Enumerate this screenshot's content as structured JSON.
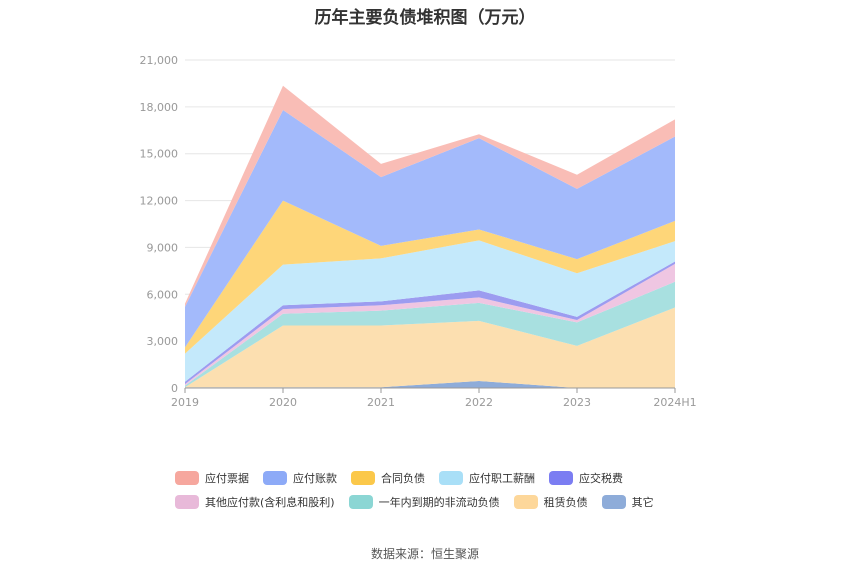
{
  "title": "历年主要负债堆积图（万元）",
  "source": "数据来源：恒生聚源",
  "chart_data": {
    "type": "area",
    "stacked": true,
    "categories": [
      "2019",
      "2020",
      "2021",
      "2022",
      "2023",
      "2024H1"
    ],
    "ylim": [
      0,
      21000
    ],
    "yticks": [
      "0",
      "3,000",
      "6,000",
      "9,000",
      "12,000",
      "15,000",
      "18,000",
      "21,000"
    ],
    "grid": true,
    "legend_position": "bottom",
    "series": [
      {
        "name": "其它",
        "color": "#8eacd9",
        "values": [
          50,
          50,
          50,
          450,
          0,
          0
        ]
      },
      {
        "name": "租赁负债",
        "color": "#fcdfb0",
        "values": [
          0,
          3950,
          3950,
          3850,
          2700,
          5150
        ]
      },
      {
        "name": "一年内到期的非流动负债",
        "color": "#a8e0e0",
        "values": [
          100,
          750,
          950,
          1150,
          1500,
          1650
        ]
      },
      {
        "name": "其他应付款(含利息和股利)",
        "color": "#efc6e2",
        "values": [
          100,
          300,
          350,
          350,
          150,
          1150
        ]
      },
      {
        "name": "应交税费",
        "color": "#9c9cf0",
        "values": [
          150,
          250,
          250,
          450,
          200,
          150
        ]
      },
      {
        "name": "应付职工薪酬",
        "color": "#c4e9fb",
        "values": [
          1800,
          2600,
          2750,
          3200,
          2800,
          1300
        ]
      },
      {
        "name": "合同负债",
        "color": "#fed679",
        "values": [
          400,
          4100,
          800,
          700,
          900,
          1300
        ]
      },
      {
        "name": "应付账款",
        "color": "#a3bafb",
        "values": [
          2600,
          5800,
          4400,
          5850,
          4500,
          5400
        ]
      },
      {
        "name": "应付票据",
        "color": "#f9bdb6",
        "values": [
          200,
          1550,
          850,
          250,
          900,
          1100
        ]
      }
    ]
  },
  "legend_rows": [
    [
      {
        "label": "应付票据",
        "color": "#f6a79e"
      },
      {
        "label": "应付账款",
        "color": "#8daaf7"
      },
      {
        "label": "合同负债",
        "color": "#fbc84a"
      },
      {
        "label": "应付职工薪酬",
        "color": "#a9dff7"
      },
      {
        "label": "应交税费",
        "color": "#7b7df2"
      }
    ],
    [
      {
        "label": "其他应付款(含利息和股利)",
        "color": "#e8b9d9"
      },
      {
        "label": "一年内到期的非流动负债",
        "color": "#8bd6d4"
      },
      {
        "label": "租赁负债",
        "color": "#fdd79a"
      },
      {
        "label": "其它",
        "color": "#8eacd9"
      }
    ]
  ]
}
